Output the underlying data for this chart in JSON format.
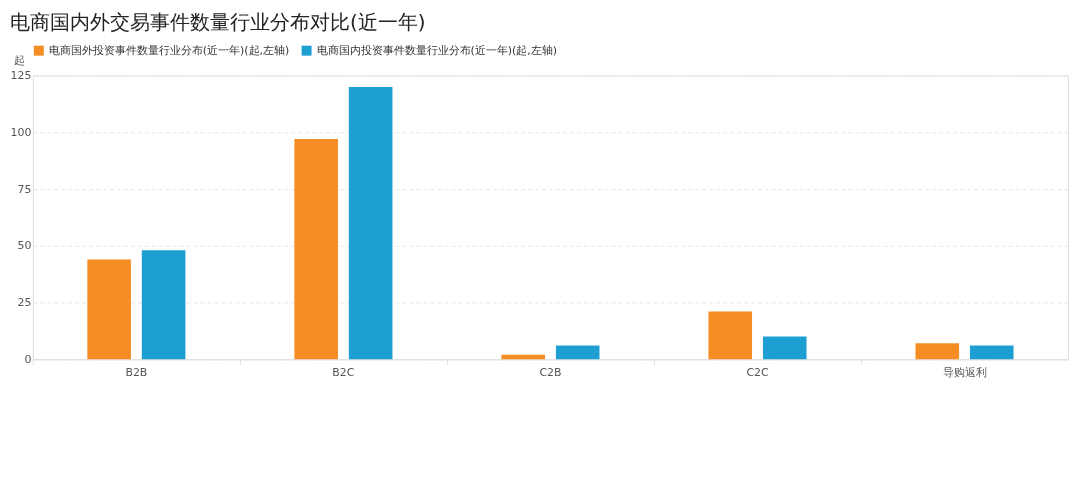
{
  "chart_data": {
    "type": "bar",
    "title": "电商国内外交易事件数量行业分布对比(近一年)",
    "ylabel": "起",
    "categories": [
      "B2B",
      "B2C",
      "C2B",
      "C2C",
      "导购返利"
    ],
    "series": [
      {
        "name": "电商国外投资事件数量行业分布(近一年)(起,左轴)",
        "color": "#f68c24",
        "values": [
          44,
          97,
          2,
          21,
          7
        ]
      },
      {
        "name": "电商国内投资事件数量行业分布(近一年)(起,左轴)",
        "color": "#1e9fd4",
        "values": [
          48,
          120,
          6,
          10,
          6
        ]
      }
    ],
    "ylim": [
      0,
      125
    ],
    "yticks": [
      0,
      25,
      50,
      75,
      100,
      125
    ],
    "grid": "y",
    "legend": "top left"
  }
}
